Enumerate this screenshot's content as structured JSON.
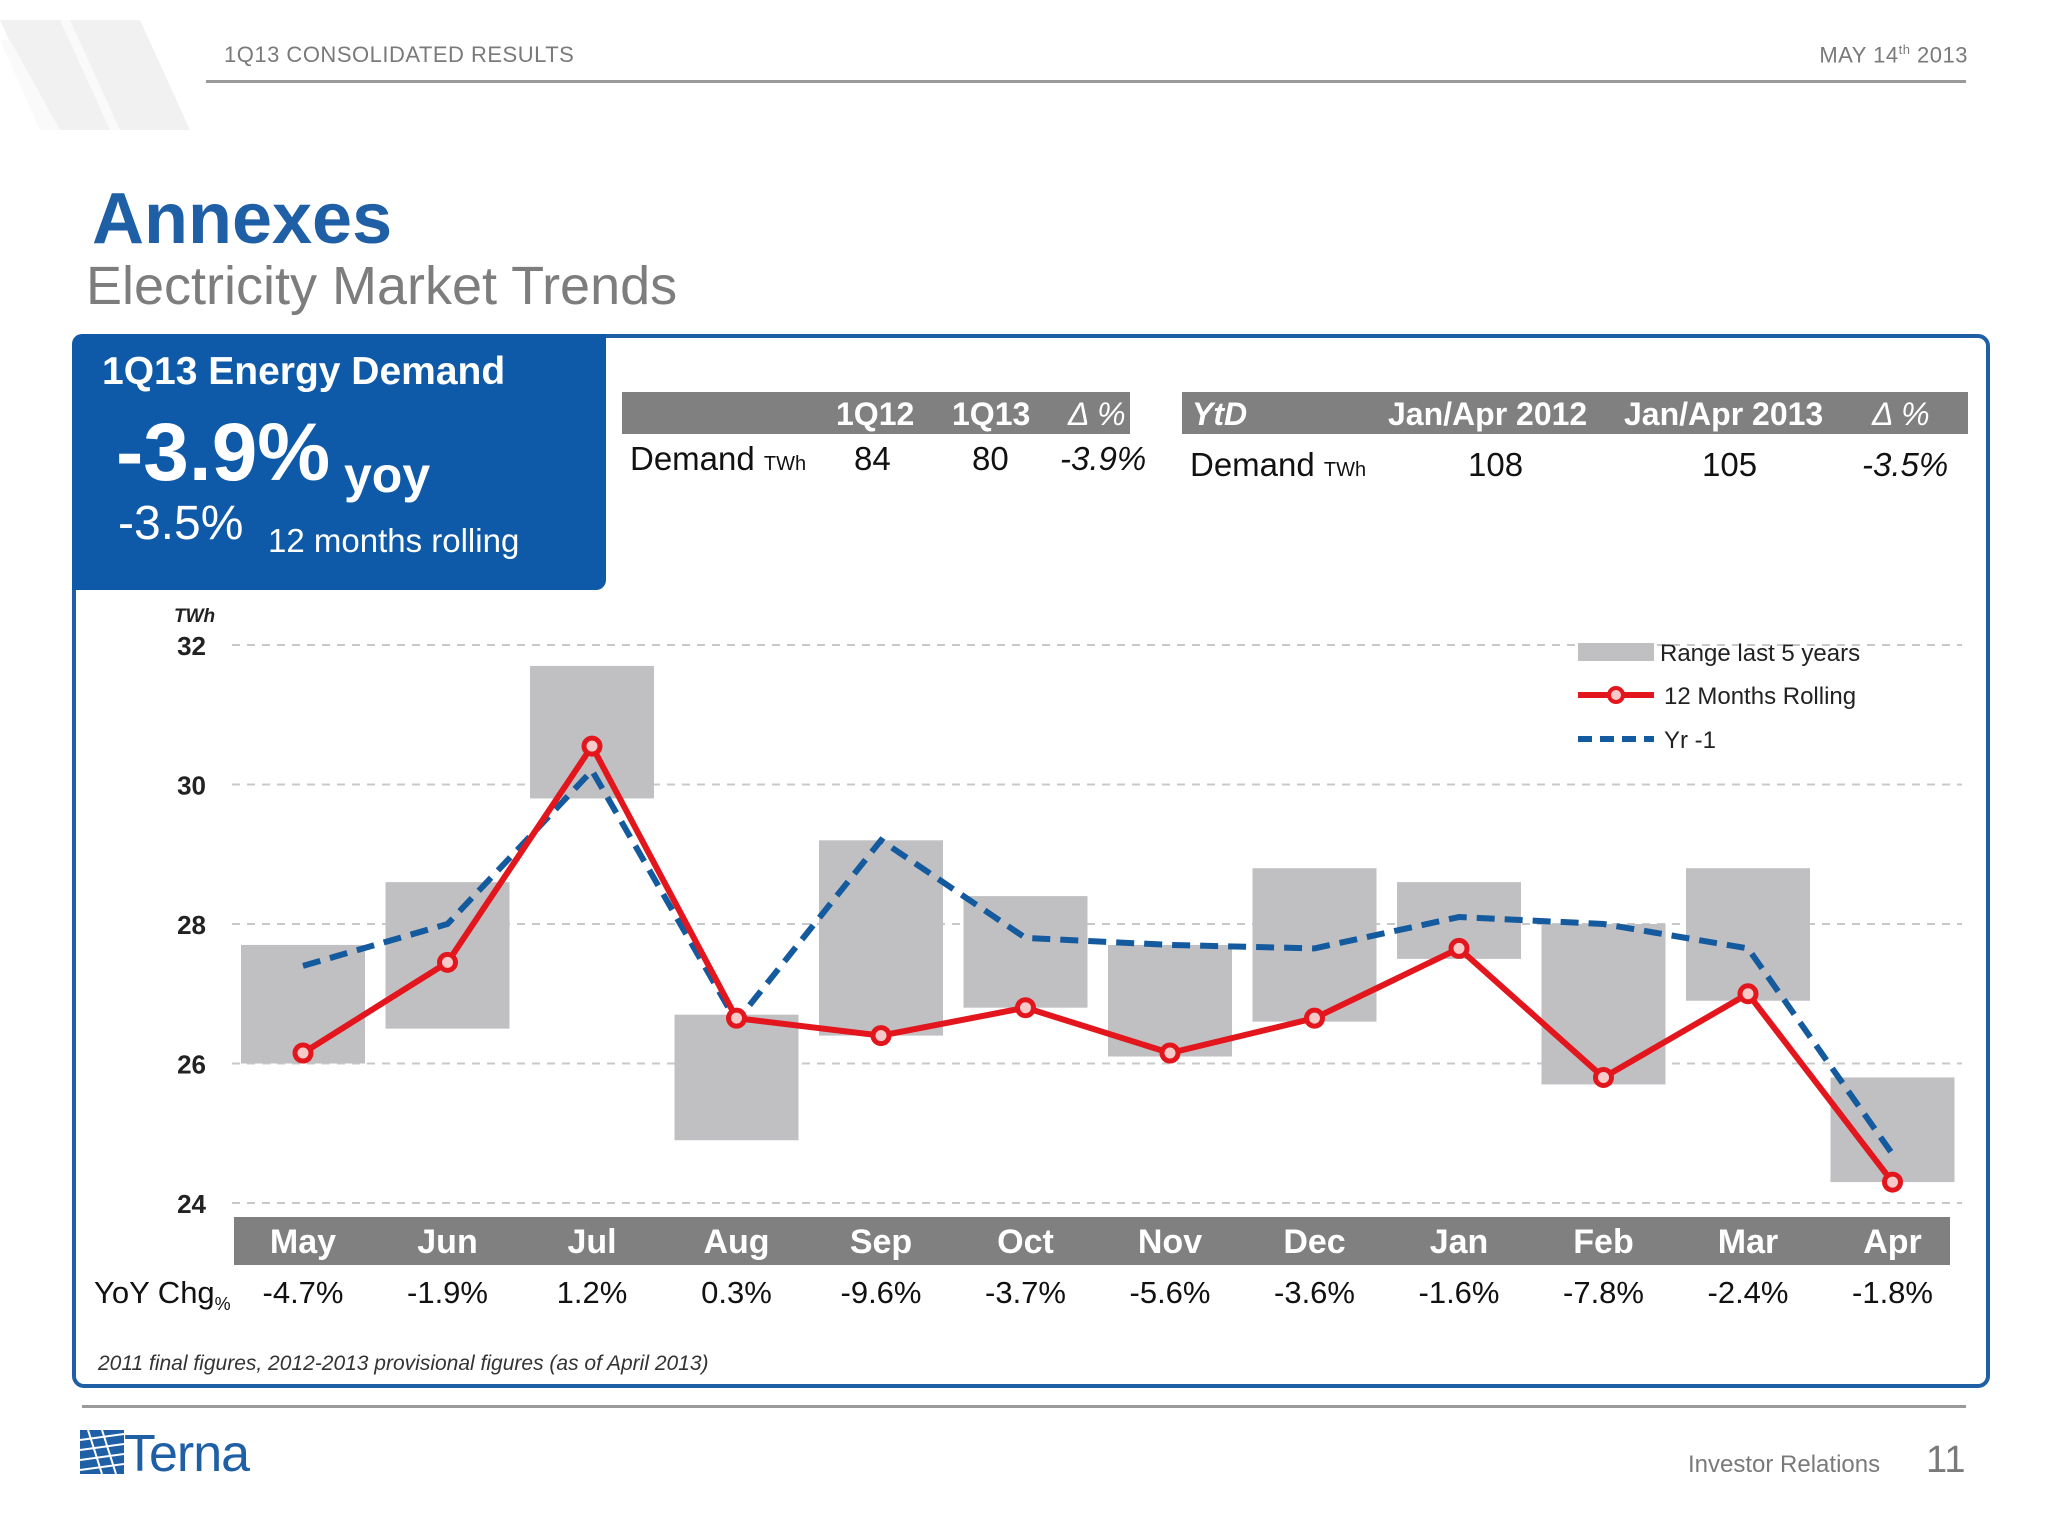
{
  "header": {
    "left": "1Q13 CONSOLIDATED RESULTS",
    "right_pre": "MAY 14",
    "right_sup": "th",
    "right_post": "2013"
  },
  "title": "Annexes",
  "subtitle": "Electricity Market Trends",
  "summary": {
    "title": "1Q13 Energy Demand",
    "big_value": "-3.9%",
    "big_label": "yoy",
    "rolling_value": "-3.5%",
    "rolling_label": "12 months rolling"
  },
  "table_quarter": {
    "headers": [
      "1Q12",
      "1Q13",
      "Δ %"
    ],
    "row_label": "Demand",
    "row_unit": "TWh",
    "values": [
      "84",
      "80",
      "-3.9%"
    ]
  },
  "table_ytd": {
    "headers": [
      "YtD",
      "Jan/Apr 2012",
      "Jan/Apr 2013",
      "Δ %"
    ],
    "row_label": "Demand",
    "row_unit": "TWh",
    "values": [
      "108",
      "105",
      "-3.5%"
    ]
  },
  "chart_data": {
    "type": "bar",
    "ylabel": "TWh",
    "ylim": [
      24,
      32
    ],
    "yticks": [
      "24",
      "26",
      "28",
      "30",
      "32"
    ],
    "categories": [
      "May",
      "Jun",
      "Jul",
      "Aug",
      "Sep",
      "Oct",
      "Nov",
      "Dec",
      "Jan",
      "Feb",
      "Mar",
      "Apr"
    ],
    "range": {
      "name": "Range last 5 years",
      "low": [
        26.0,
        26.5,
        29.8,
        24.9,
        26.4,
        26.8,
        26.1,
        26.6,
        27.5,
        25.7,
        26.9,
        24.3
      ],
      "high": [
        27.7,
        28.6,
        31.7,
        26.7,
        29.2,
        28.4,
        27.7,
        28.8,
        28.6,
        28.0,
        28.8,
        25.8
      ]
    },
    "series": [
      {
        "name": "12 Months Rolling",
        "color": "#e3161d",
        "values": [
          26.15,
          27.45,
          30.55,
          26.65,
          26.4,
          26.8,
          26.15,
          26.65,
          27.65,
          25.8,
          27.0,
          24.3
        ]
      },
      {
        "name": "Yr -1",
        "color": "#145a9e",
        "values": [
          27.4,
          28.0,
          30.2,
          26.6,
          29.2,
          27.8,
          27.7,
          27.65,
          28.1,
          28.0,
          27.65,
          24.7
        ]
      }
    ],
    "legend_position": "top-right",
    "grid": true,
    "range_color": "#c0bfc2"
  },
  "yoy": {
    "label": "YoY Chg",
    "unit": "%",
    "values": [
      "-4.7%",
      "-1.9%",
      "1.2%",
      "0.3%",
      "-9.6%",
      "-3.7%",
      "-5.6%",
      "-3.6%",
      "-1.6%",
      "-7.8%",
      "-2.4%",
      "-1.8%"
    ]
  },
  "footnote": "2011 final figures, 2012-2013 provisional figures (as of  April 2013)",
  "footer": {
    "logo": "Terna",
    "section": "Investor Relations",
    "page": "11"
  },
  "colors": {
    "brand_blue": "#1f5fa6",
    "header_gray": "#808080",
    "accent_red": "#e3161d"
  }
}
